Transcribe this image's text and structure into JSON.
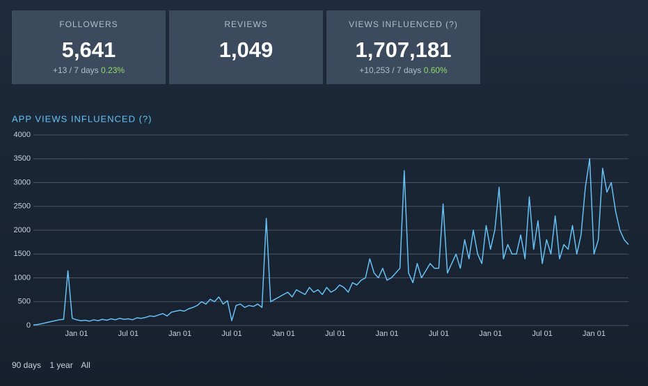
{
  "stats": [
    {
      "label": "FOLLOWERS",
      "value": "5,641",
      "change": "+13 / 7 days",
      "percent": "0.23%"
    },
    {
      "label": "REVIEWS",
      "value": "1,049"
    },
    {
      "label": "VIEWS INFLUENCED (?)",
      "value": "1,707,181",
      "change": "+10,253 / 7 days",
      "percent": "0.60%"
    }
  ],
  "chart_data": {
    "type": "line",
    "title": "APP VIEWS INFLUENCED (?)",
    "color": "#67c1f5",
    "grid": true,
    "ylim": [
      0,
      4000
    ],
    "yticks": [
      0,
      500,
      1000,
      1500,
      2000,
      2500,
      3000,
      3500,
      4000
    ],
    "categories": [
      null,
      null,
      null,
      null,
      null,
      null,
      null,
      null,
      null,
      null,
      "Jan 01",
      null,
      null,
      null,
      null,
      null,
      null,
      null,
      null,
      null,
      null,
      null,
      "Jul 01",
      null,
      null,
      null,
      null,
      null,
      null,
      null,
      null,
      null,
      null,
      null,
      "Jan 01",
      null,
      null,
      null,
      null,
      null,
      null,
      null,
      null,
      null,
      null,
      null,
      "Jul 01",
      null,
      null,
      null,
      null,
      null,
      null,
      null,
      null,
      null,
      null,
      null,
      "Jan 01",
      null,
      null,
      null,
      null,
      null,
      null,
      null,
      null,
      null,
      null,
      null,
      "Jul 01",
      null,
      null,
      null,
      null,
      null,
      null,
      null,
      null,
      null,
      null,
      null,
      "Jan 01",
      null,
      null,
      null,
      null,
      null,
      null,
      null,
      null,
      null,
      null,
      null,
      "Jul 01",
      null,
      null,
      null,
      null,
      null,
      null,
      null,
      null,
      null,
      null,
      null,
      "Jan 01",
      null,
      null,
      null,
      null,
      null,
      null,
      null,
      null,
      null,
      null,
      null,
      "Jul 01",
      null,
      null,
      null,
      null,
      null,
      null,
      null,
      null,
      null,
      null,
      null,
      "Jan 01",
      null,
      null,
      null,
      null,
      null,
      null,
      null,
      null
    ],
    "values": [
      10,
      20,
      40,
      60,
      80,
      100,
      120,
      130,
      1150,
      150,
      120,
      100,
      110,
      90,
      120,
      100,
      130,
      110,
      140,
      120,
      150,
      130,
      140,
      120,
      160,
      150,
      170,
      200,
      190,
      220,
      250,
      200,
      280,
      300,
      320,
      300,
      350,
      380,
      420,
      500,
      450,
      550,
      500,
      600,
      450,
      520,
      100,
      420,
      450,
      380,
      420,
      400,
      450,
      380,
      2250,
      500,
      550,
      600,
      650,
      700,
      600,
      750,
      700,
      650,
      800,
      700,
      750,
      650,
      800,
      700,
      750,
      850,
      800,
      700,
      900,
      850,
      950,
      1000,
      1400,
      1100,
      1000,
      1200,
      950,
      1000,
      1100,
      1200,
      3250,
      1100,
      900,
      1300,
      1000,
      1150,
      1300,
      1200,
      1200,
      2550,
      1100,
      1300,
      1500,
      1200,
      1800,
      1400,
      2000,
      1500,
      1300,
      2100,
      1600,
      2000,
      2900,
      1400,
      1700,
      1500,
      1500,
      1900,
      1400,
      2700,
      1600,
      2200,
      1300,
      1800,
      1500,
      2300,
      1400,
      1700,
      1600,
      2100,
      1500,
      1900,
      2900,
      3500,
      1500,
      1800,
      3300,
      2800,
      3000,
      2400,
      2000,
      1800,
      1700
    ]
  },
  "range_links": [
    "90 days",
    "1 year",
    "All"
  ]
}
